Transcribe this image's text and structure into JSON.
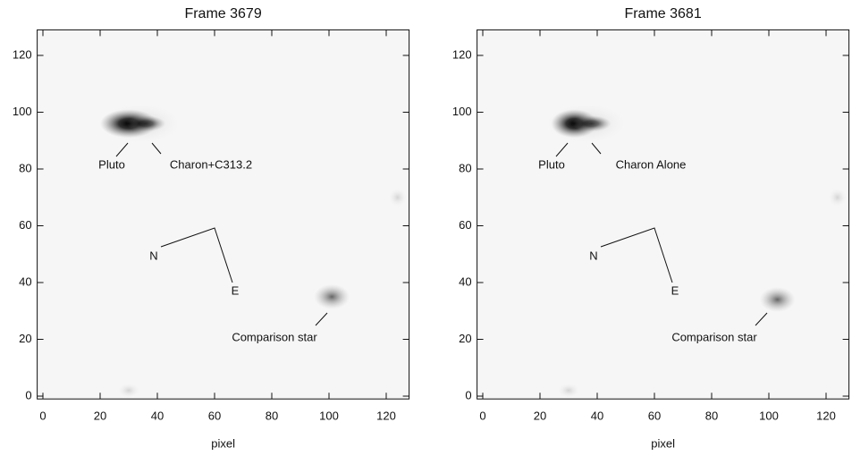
{
  "chart_data": [
    {
      "type": "image",
      "title": "Frame 3679",
      "x_label": "pixel",
      "xlim": [
        -2,
        128
      ],
      "ylim": [
        -1,
        129
      ],
      "xticks": [
        0,
        20,
        40,
        60,
        80,
        100,
        120
      ],
      "yticks": [
        0,
        20,
        40,
        60,
        80,
        100,
        120
      ],
      "annotations": [
        "Pluto",
        "Charon+C313.2",
        "N",
        "E",
        "Comparison star"
      ]
    },
    {
      "type": "image",
      "title": "Frame 3681",
      "x_label": "pixel",
      "xlim": [
        -2,
        128
      ],
      "ylim": [
        -1,
        129
      ],
      "xticks": [
        0,
        20,
        40,
        60,
        80,
        100,
        120
      ],
      "yticks": [
        0,
        20,
        40,
        60,
        80,
        100,
        120
      ],
      "annotations": [
        "Pluto",
        "Charon Alone",
        "N",
        "E",
        "Comparison star"
      ]
    }
  ]
}
